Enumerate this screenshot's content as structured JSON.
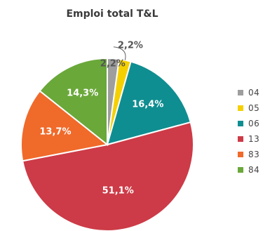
{
  "chart_data": {
    "type": "pie",
    "title": "Emploi total T&L",
    "legend_position": "right",
    "slices": [
      {
        "category": "04",
        "value": 2.2,
        "label": "2,2%",
        "color": "#9e9e9e"
      },
      {
        "category": "05",
        "value": 2.2,
        "label": "2,2%",
        "color": "#f5d000"
      },
      {
        "category": "06",
        "value": 16.4,
        "label": "16,4%",
        "color": "#0f8e91"
      },
      {
        "category": "13",
        "value": 51.1,
        "label": "51,1%",
        "color": "#cc3b47"
      },
      {
        "category": "83",
        "value": 13.7,
        "label": "13,7%",
        "color": "#f06a2a"
      },
      {
        "category": "84",
        "value": 14.3,
        "label": "14,3%",
        "color": "#6aa83a"
      }
    ]
  }
}
